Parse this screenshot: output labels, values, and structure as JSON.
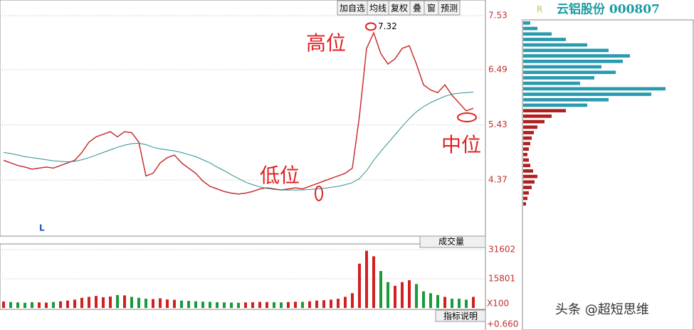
{
  "ui": {
    "toolbar": [
      "加自选",
      "均线",
      "复权",
      "叠",
      "窗",
      "预测"
    ],
    "stock_title": "云铝股份 000807",
    "right_marker": "R",
    "indicator_help": "指标说明",
    "bottom_value": "+0.660",
    "watermark": "头条 @超短思维"
  },
  "chart_data": [
    {
      "type": "line",
      "corner_label": "L",
      "peak": 7.32,
      "annotations": [
        "高位",
        "低位",
        "中位"
      ],
      "ylim": [
        3.32,
        7.83
      ],
      "yticks": [
        7.53,
        6.49,
        5.43,
        4.37
      ],
      "grid": true,
      "series": [
        {
          "color": "#c83030",
          "values": [
            4.75,
            4.7,
            4.65,
            4.62,
            4.58,
            4.6,
            4.62,
            4.6,
            4.65,
            4.7,
            4.75,
            4.9,
            5.1,
            5.2,
            5.25,
            5.3,
            5.2,
            5.3,
            5.28,
            5.1,
            4.45,
            4.5,
            4.7,
            4.8,
            4.85,
            4.7,
            4.6,
            4.5,
            4.35,
            4.25,
            4.2,
            4.15,
            4.12,
            4.1,
            4.12,
            4.15,
            4.2,
            4.22,
            4.2,
            4.18,
            4.2,
            4.22,
            4.2,
            4.25,
            4.3,
            4.35,
            4.4,
            4.45,
            4.5,
            4.6,
            5.6,
            6.9,
            7.2,
            6.8,
            6.6,
            6.7,
            6.9,
            6.95,
            6.6,
            6.2,
            6.1,
            6.05,
            6.2,
            6.0,
            5.85,
            5.7,
            5.75
          ]
        },
        {
          "color": "#2a8f8f",
          "values": [
            4.9,
            4.88,
            4.85,
            4.82,
            4.8,
            4.78,
            4.76,
            4.74,
            4.73,
            4.72,
            4.73,
            4.76,
            4.8,
            4.85,
            4.9,
            4.95,
            5.0,
            5.04,
            5.07,
            5.08,
            5.05,
            5.0,
            4.97,
            4.95,
            4.93,
            4.9,
            4.86,
            4.82,
            4.76,
            4.7,
            4.62,
            4.55,
            4.47,
            4.4,
            4.33,
            4.28,
            4.24,
            4.21,
            4.19,
            4.18,
            4.18,
            4.18,
            4.18,
            4.19,
            4.2,
            4.21,
            4.23,
            4.25,
            4.28,
            4.32,
            4.4,
            4.55,
            4.75,
            4.92,
            5.08,
            5.24,
            5.4,
            5.55,
            5.68,
            5.78,
            5.86,
            5.92,
            5.98,
            6.02,
            6.04,
            6.05,
            6.06
          ]
        }
      ]
    },
    {
      "type": "bar",
      "indicator": "成交量",
      "unit_label": "X100",
      "ylim": [
        0,
        33900
      ],
      "yticks": [
        31602,
        15801
      ],
      "grid": true,
      "up_color": "#d02020",
      "down_color": "#1a9a3a",
      "values": [
        3500,
        3200,
        3000,
        2800,
        3100,
        3000,
        2900,
        3200,
        3600,
        4000,
        4500,
        5500,
        6000,
        6500,
        5800,
        6200,
        7000,
        6800,
        6000,
        5500,
        5000,
        4800,
        5200,
        4600,
        4400,
        4000,
        3800,
        3600,
        3400,
        3300,
        3100,
        3000,
        2900,
        2800,
        3000,
        3100,
        3300,
        3200,
        3100,
        3000,
        3200,
        3400,
        3300,
        3600,
        4000,
        4200,
        4500,
        5000,
        6000,
        8000,
        24000,
        31000,
        28000,
        20000,
        14000,
        12000,
        14000,
        15000,
        13000,
        9000,
        8000,
        7000,
        6000,
        5000,
        5000,
        4500,
        6000
      ]
    },
    {
      "type": "bar",
      "orientation": "horizontal",
      "up_color": "#2a9ab0",
      "down_color": "#b02020",
      "values": [
        10,
        20,
        40,
        60,
        90,
        120,
        150,
        140,
        110,
        130,
        100,
        80,
        200,
        180,
        120,
        90,
        60,
        40,
        30,
        20,
        15,
        12,
        10,
        8,
        6,
        8,
        10,
        14,
        20,
        16,
        12,
        8,
        6,
        4
      ]
    }
  ]
}
